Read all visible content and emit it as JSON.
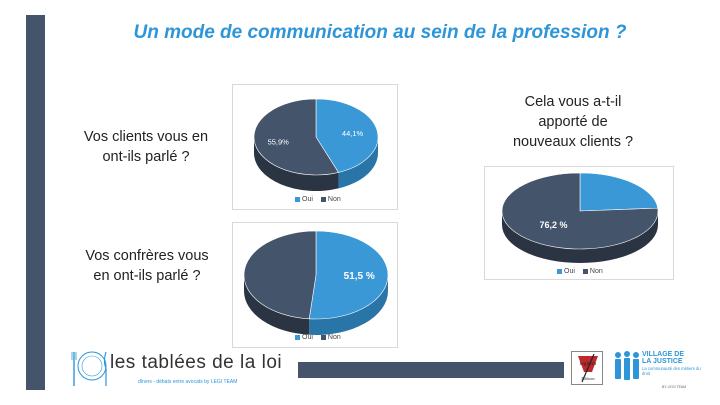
{
  "slide": {
    "title": "Un mode de communication au sein de la profession ?"
  },
  "colors": {
    "oui": "#3a98d6",
    "non": "#44546a",
    "oui_side": "#2a75a8",
    "non_side": "#2a3443",
    "accent": "#2e96d8"
  },
  "questions": {
    "q1": [
      "Vos clients vous en",
      "ont-ils parlé ?"
    ],
    "q2": [
      "Vos confrères vous",
      "en ont-ils parlé ?"
    ],
    "q3": [
      "Cela vous a-t-il",
      "apporté de",
      "nouveaux clients ?"
    ]
  },
  "chart_data": [
    {
      "type": "pie",
      "question": "Vos clients vous en ont-ils parlé ?",
      "categories": [
        "Oui",
        "Non"
      ],
      "values": [
        44.1,
        55.9
      ],
      "data_labels": [
        "44,1%",
        "55,9%"
      ],
      "legend": [
        "Oui",
        "Non"
      ],
      "legend_position": "bottom",
      "style": "3d"
    },
    {
      "type": "pie",
      "question": "Vos confrères vous en ont-ils parlé ?",
      "categories": [
        "Oui",
        "Non"
      ],
      "values": [
        51.5,
        48.5
      ],
      "data_labels": [
        "51,5 %",
        ""
      ],
      "legend": [
        "Oui",
        "Non"
      ],
      "legend_position": "bottom",
      "style": "3d"
    },
    {
      "type": "pie",
      "question": "Cela vous a-t-il apporté de nouveaux clients ?",
      "categories": [
        "Oui",
        "Non"
      ],
      "values": [
        23.8,
        76.2
      ],
      "data_labels": [
        "",
        "76,2 %"
      ],
      "legend": [
        "Oui",
        "Non"
      ],
      "legend_position": "bottom",
      "style": "3d"
    }
  ],
  "footer": {
    "logo_text": "les tablées de la loi",
    "logo_sub": "dîners - débats entre avocats by LEGI TEAM",
    "legitem_text": "legitem",
    "legitem_sub": "Editions",
    "village_line1": "VILLAGE DE",
    "village_line2": "LA JUSTICE",
    "village_sub": "La communauté des métiers du droit",
    "village_by": "BY LEGI TEAM"
  }
}
